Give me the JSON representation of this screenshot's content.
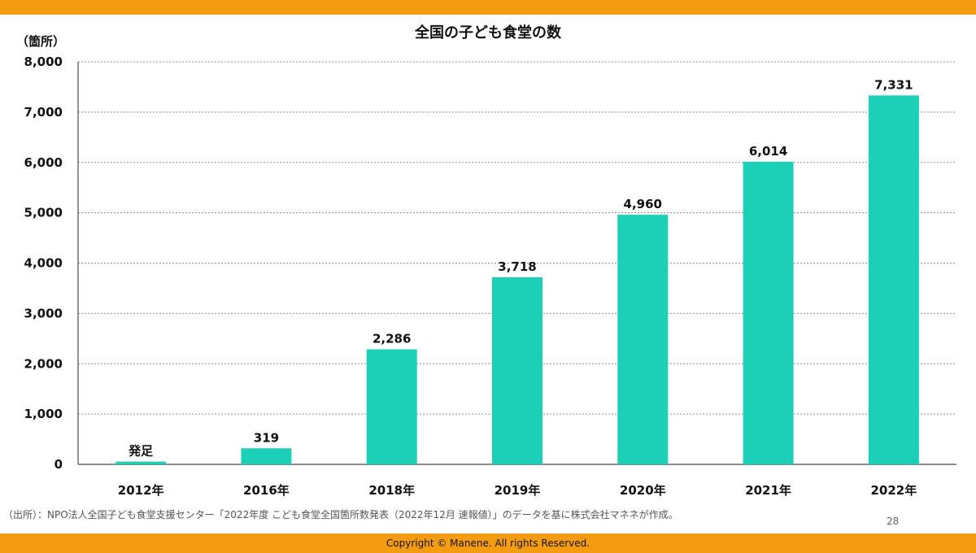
{
  "colors": {
    "accent": "#f39c12",
    "bar": "#1ccfb7",
    "grid": "#8c8c8c",
    "axis": "#666666"
  },
  "chart_data": {
    "type": "bar",
    "title": "全国の子ども食堂の数",
    "ylabel": "（箇所）",
    "categories": [
      "2012年",
      "2016年",
      "2018年",
      "2019年",
      "2020年",
      "2021年",
      "2022年"
    ],
    "values": [
      55,
      319,
      2286,
      3718,
      4960,
      6014,
      7331
    ],
    "value_labels": [
      "発足",
      "319",
      "2,286",
      "3,718",
      "4,960",
      "6,014",
      "7,331"
    ],
    "y_ticks": [
      "0",
      "1,000",
      "2,000",
      "3,000",
      "4,000",
      "5,000",
      "6,000",
      "7,000",
      "8,000"
    ],
    "ylim": [
      0,
      8000
    ],
    "grid": true
  },
  "source_note": "（出所）：NPO法人全国子ども食堂支援センター「2022年度 こども食堂全国箇所数発表（2022年12月 速報値）」のデータを基に株式会社マネネが作成。",
  "page_number": "28",
  "footer": {
    "copyright": "Copyright © Manene. All rights Reserved."
  }
}
